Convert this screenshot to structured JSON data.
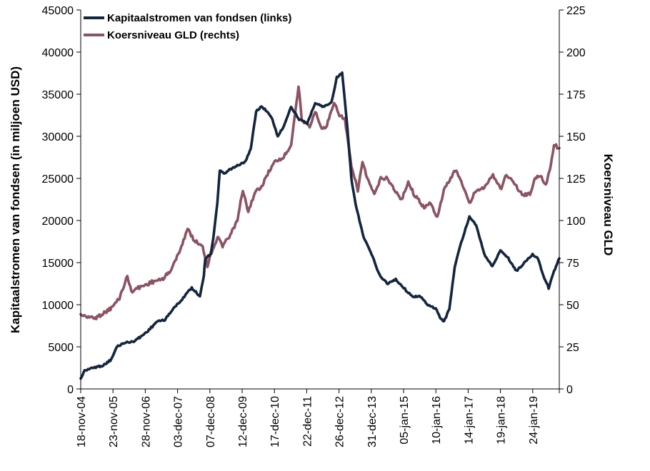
{
  "chart_data": {
    "type": "line",
    "title": "",
    "grid": false,
    "legend_position": "top-left",
    "x_axis": {
      "tick_labels": [
        "18-nov-04",
        "23-nov-05",
        "28-nov-06",
        "03-dec-07",
        "07-dec-08",
        "12-dec-09",
        "17-dec-10",
        "22-dec-11",
        "26-dec-12",
        "31-dec-13",
        "05-jan-15",
        "10-jan-16",
        "14-jan-17",
        "19-jan-18",
        "24-jan-19"
      ],
      "range": [
        "2004-11-18",
        "2019-09-30"
      ]
    },
    "y_axis_left": {
      "label": "Kapitaalstromen van fondsen (in miljoen USD)",
      "ylim": [
        0,
        45000
      ],
      "ticks": [
        0,
        5000,
        10000,
        15000,
        20000,
        25000,
        30000,
        35000,
        40000,
        45000
      ]
    },
    "y_axis_right": {
      "label": "Koersniveau GLD",
      "ylim": [
        0,
        225
      ],
      "ticks": [
        0,
        25,
        50,
        75,
        100,
        125,
        150,
        175,
        200,
        225
      ]
    },
    "series": [
      {
        "name": "Kapitaalstromen van fondsen (links)",
        "axis": "left",
        "color": "#14253f",
        "x": [
          "2004-11-18",
          "2005-01-01",
          "2005-04-01",
          "2005-08-01",
          "2005-11-01",
          "2006-01-01",
          "2006-04-01",
          "2006-07-01",
          "2006-10-01",
          "2007-01-01",
          "2007-04-01",
          "2007-07-01",
          "2007-10-01",
          "2008-01-01",
          "2008-03-15",
          "2008-05-01",
          "2008-08-01",
          "2008-09-15",
          "2008-10-01",
          "2008-12-01",
          "2009-01-01",
          "2009-02-15",
          "2009-03-15",
          "2009-05-01",
          "2009-07-01",
          "2009-10-01",
          "2010-01-01",
          "2010-03-01",
          "2010-05-01",
          "2010-07-01",
          "2010-09-01",
          "2010-11-01",
          "2011-01-01",
          "2011-03-01",
          "2011-06-01",
          "2011-09-01",
          "2011-12-01",
          "2012-03-01",
          "2012-06-01",
          "2012-09-01",
          "2012-11-01",
          "2013-01-01",
          "2013-03-01",
          "2013-04-15",
          "2013-06-01",
          "2013-09-01",
          "2013-12-01",
          "2014-03-01",
          "2014-06-01",
          "2014-09-01",
          "2014-12-01",
          "2015-03-01",
          "2015-06-01",
          "2015-09-01",
          "2015-12-01",
          "2016-01-15",
          "2016-03-01",
          "2016-05-01",
          "2016-07-01",
          "2016-09-01",
          "2016-11-01",
          "2016-12-15",
          "2017-03-01",
          "2017-06-01",
          "2017-09-01",
          "2017-12-01",
          "2018-03-01",
          "2018-06-01",
          "2018-09-01",
          "2018-12-01",
          "2019-02-01",
          "2019-04-01",
          "2019-06-01",
          "2019-08-01",
          "2019-09-30"
        ],
        "values": [
          1200,
          2200,
          2500,
          2800,
          3500,
          5000,
          5500,
          5600,
          6200,
          7000,
          8000,
          8200,
          9500,
          10500,
          11500,
          12000,
          11000,
          13500,
          15500,
          16000,
          18000,
          22000,
          26000,
          25500,
          26000,
          26500,
          27000,
          28500,
          33000,
          33500,
          33000,
          32000,
          30000,
          31000,
          33500,
          32000,
          31500,
          34000,
          33500,
          34000,
          37000,
          37500,
          31000,
          25000,
          22000,
          18000,
          16000,
          13500,
          12500,
          13000,
          12000,
          11000,
          11000,
          10000,
          9500,
          8500,
          8000,
          9500,
          14500,
          17000,
          19000,
          20500,
          19500,
          16000,
          14500,
          16500,
          15500,
          14000,
          15000,
          16000,
          15500,
          13500,
          12000,
          14000,
          15500
        ]
      },
      {
        "name": "Koersniveau GLD (rechts)",
        "axis": "right",
        "color": "#8c5360",
        "x": [
          "2004-11-18",
          "2005-02-01",
          "2005-05-01",
          "2005-08-01",
          "2005-11-01",
          "2006-02-01",
          "2006-05-01",
          "2006-06-15",
          "2006-09-01",
          "2006-12-01",
          "2007-03-01",
          "2007-06-01",
          "2007-09-01",
          "2007-12-01",
          "2008-03-15",
          "2008-06-01",
          "2008-09-01",
          "2008-10-25",
          "2008-12-01",
          "2009-02-20",
          "2009-04-15",
          "2009-07-01",
          "2009-10-01",
          "2009-12-01",
          "2010-02-01",
          "2010-05-01",
          "2010-07-01",
          "2010-10-01",
          "2010-12-01",
          "2011-03-01",
          "2011-06-01",
          "2011-08-25",
          "2011-10-01",
          "2011-12-29",
          "2012-03-01",
          "2012-05-15",
          "2012-07-01",
          "2012-10-01",
          "2012-12-01",
          "2013-02-01",
          "2013-04-15",
          "2013-06-28",
          "2013-08-20",
          "2013-10-01",
          "2013-12-31",
          "2014-03-15",
          "2014-06-01",
          "2014-09-01",
          "2014-11-05",
          "2015-01-20",
          "2015-04-01",
          "2015-07-20",
          "2015-10-01",
          "2015-12-17",
          "2016-03-01",
          "2016-07-06",
          "2016-09-01",
          "2016-12-15",
          "2017-03-01",
          "2017-06-01",
          "2017-09-08",
          "2017-12-12",
          "2018-01-25",
          "2018-04-01",
          "2018-06-01",
          "2018-08-16",
          "2018-11-01",
          "2019-01-01",
          "2019-03-01",
          "2019-05-01",
          "2019-06-25",
          "2019-08-01",
          "2019-09-30"
        ],
        "values": [
          44,
          43,
          42,
          45,
          48,
          54,
          67,
          58,
          60,
          62,
          64,
          65,
          70,
          80,
          95,
          88,
          85,
          73,
          80,
          90,
          85,
          90,
          100,
          118,
          105,
          118,
          120,
          130,
          135,
          137,
          145,
          180,
          160,
          155,
          165,
          155,
          155,
          170,
          163,
          160,
          132,
          118,
          135,
          127,
          115,
          125,
          125,
          117,
          112,
          123,
          115,
          108,
          110,
          102,
          118,
          130,
          125,
          110,
          118,
          120,
          127,
          118,
          127,
          125,
          120,
          115,
          116,
          125,
          127,
          121,
          133,
          145,
          143
        ]
      }
    ]
  }
}
